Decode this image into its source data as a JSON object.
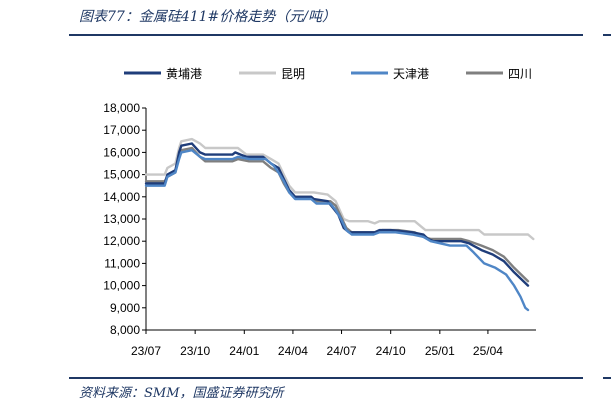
{
  "header": {
    "title": "图表77：金属硅411#价格走势（元/吨）"
  },
  "footer": {
    "source": "资料来源：SMM，国盛证券研究所"
  },
  "chart_data": {
    "type": "line",
    "title": "图表77：金属硅411#价格走势（元/吨）",
    "xlabel": "",
    "ylabel": "",
    "ylim": [
      8000,
      18000
    ],
    "yticks": [
      8000,
      9000,
      10000,
      11000,
      12000,
      13000,
      14000,
      15000,
      16000,
      17000,
      18000
    ],
    "ytick_labels": [
      "8,000",
      "9,000",
      "10,000",
      "11,000",
      "12,000",
      "13,000",
      "14,000",
      "15,000",
      "16,000",
      "17,000",
      "18,000"
    ],
    "xlim": [
      "2023-07-01",
      "2025-06-30"
    ],
    "xticks": [
      "2023-07-01",
      "2023-10-01",
      "2024-01-01",
      "2024-04-01",
      "2024-07-01",
      "2024-10-01",
      "2025-01-01",
      "2025-04-01"
    ],
    "xtick_labels": [
      "23/07",
      "23/10",
      "24/01",
      "24/04",
      "24/07",
      "24/10",
      "25/01",
      "25/04"
    ],
    "grid": false,
    "legend_position": "top",
    "series": [
      {
        "name": "黄埔港",
        "color": "#1f3d7a",
        "points": [
          [
            "2023-07-01",
            14600
          ],
          [
            "2023-08-05",
            14600
          ],
          [
            "2023-08-10",
            15000
          ],
          [
            "2023-08-25",
            15200
          ],
          [
            "2023-09-01",
            16000
          ],
          [
            "2023-09-05",
            16300
          ],
          [
            "2023-09-25",
            16400
          ],
          [
            "2023-10-10",
            16000
          ],
          [
            "2023-10-20",
            15900
          ],
          [
            "2023-12-10",
            15900
          ],
          [
            "2023-12-15",
            16000
          ],
          [
            "2023-12-25",
            15900
          ],
          [
            "2024-01-05",
            15800
          ],
          [
            "2024-02-05",
            15800
          ],
          [
            "2024-02-20",
            15500
          ],
          [
            "2024-03-05",
            15300
          ],
          [
            "2024-03-15",
            14800
          ],
          [
            "2024-03-25",
            14300
          ],
          [
            "2024-04-05",
            14000
          ],
          [
            "2024-05-05",
            14000
          ],
          [
            "2024-05-10",
            13900
          ],
          [
            "2024-06-05",
            13800
          ],
          [
            "2024-06-15",
            13500
          ],
          [
            "2024-06-25",
            13200
          ],
          [
            "2024-07-05",
            12600
          ],
          [
            "2024-07-15",
            12400
          ],
          [
            "2024-09-01",
            12400
          ],
          [
            "2024-09-10",
            12500
          ],
          [
            "2024-10-01",
            12500
          ],
          [
            "2024-11-10",
            12400
          ],
          [
            "2024-12-01",
            12300
          ],
          [
            "2024-12-10",
            12100
          ],
          [
            "2024-12-20",
            12000
          ],
          [
            "2025-02-10",
            12000
          ],
          [
            "2025-02-25",
            11900
          ],
          [
            "2025-03-20",
            11600
          ],
          [
            "2025-04-10",
            11400
          ],
          [
            "2025-05-01",
            11100
          ],
          [
            "2025-05-20",
            10600
          ],
          [
            "2025-06-15",
            10000
          ]
        ]
      },
      {
        "name": "昆明",
        "color": "#c8c8c8",
        "points": [
          [
            "2023-07-01",
            15000
          ],
          [
            "2023-08-05",
            15000
          ],
          [
            "2023-08-10",
            15300
          ],
          [
            "2023-08-25",
            15500
          ],
          [
            "2023-09-01",
            16200
          ],
          [
            "2023-09-05",
            16500
          ],
          [
            "2023-09-25",
            16600
          ],
          [
            "2023-10-10",
            16400
          ],
          [
            "2023-10-20",
            16200
          ],
          [
            "2023-12-20",
            16200
          ],
          [
            "2024-01-05",
            15900
          ],
          [
            "2024-02-05",
            15900
          ],
          [
            "2024-02-20",
            15700
          ],
          [
            "2024-03-05",
            15500
          ],
          [
            "2024-03-15",
            15000
          ],
          [
            "2024-03-25",
            14500
          ],
          [
            "2024-04-05",
            14200
          ],
          [
            "2024-05-10",
            14200
          ],
          [
            "2024-06-05",
            14100
          ],
          [
            "2024-06-20",
            13800
          ],
          [
            "2024-07-05",
            13000
          ],
          [
            "2024-07-15",
            12900
          ],
          [
            "2024-08-20",
            12900
          ],
          [
            "2024-09-01",
            12800
          ],
          [
            "2024-09-10",
            12900
          ],
          [
            "2024-11-15",
            12900
          ],
          [
            "2024-11-25",
            12700
          ],
          [
            "2024-12-05",
            12500
          ],
          [
            "2025-01-10",
            12500
          ],
          [
            "2025-03-15",
            12500
          ],
          [
            "2025-03-25",
            12300
          ],
          [
            "2025-06-15",
            12300
          ],
          [
            "2025-06-25",
            12100
          ]
        ]
      },
      {
        "name": "天津港",
        "color": "#4f86c6",
        "points": [
          [
            "2023-07-01",
            14500
          ],
          [
            "2023-08-05",
            14500
          ],
          [
            "2023-08-10",
            14900
          ],
          [
            "2023-08-25",
            15100
          ],
          [
            "2023-09-01",
            15700
          ],
          [
            "2023-09-05",
            16000
          ],
          [
            "2023-09-25",
            16100
          ],
          [
            "2023-10-10",
            15800
          ],
          [
            "2023-10-20",
            15700
          ],
          [
            "2023-12-10",
            15700
          ],
          [
            "2023-12-20",
            15800
          ],
          [
            "2024-01-10",
            15700
          ],
          [
            "2024-02-10",
            15700
          ],
          [
            "2024-02-25",
            15400
          ],
          [
            "2024-03-05",
            15100
          ],
          [
            "2024-03-15",
            14700
          ],
          [
            "2024-03-25",
            14200
          ],
          [
            "2024-04-05",
            13900
          ],
          [
            "2024-05-05",
            13900
          ],
          [
            "2024-05-15",
            13700
          ],
          [
            "2024-06-10",
            13700
          ],
          [
            "2024-06-20",
            13400
          ],
          [
            "2024-06-30",
            13000
          ],
          [
            "2024-07-10",
            12500
          ],
          [
            "2024-07-20",
            12300
          ],
          [
            "2024-08-30",
            12300
          ],
          [
            "2024-09-10",
            12400
          ],
          [
            "2024-10-10",
            12400
          ],
          [
            "2024-11-10",
            12300
          ],
          [
            "2024-12-01",
            12200
          ],
          [
            "2024-12-15",
            12000
          ],
          [
            "2025-01-20",
            11800
          ],
          [
            "2025-02-20",
            11800
          ],
          [
            "2025-03-05",
            11500
          ],
          [
            "2025-03-25",
            11000
          ],
          [
            "2025-04-15",
            10800
          ],
          [
            "2025-05-05",
            10500
          ],
          [
            "2025-05-20",
            10000
          ],
          [
            "2025-06-01",
            9500
          ],
          [
            "2025-06-10",
            9000
          ],
          [
            "2025-06-15",
            8900
          ]
        ]
      },
      {
        "name": "四川",
        "color": "#7f7f7f",
        "points": [
          [
            "2023-07-01",
            14700
          ],
          [
            "2023-08-05",
            14700
          ],
          [
            "2023-08-10",
            14900
          ],
          [
            "2023-08-25",
            15100
          ],
          [
            "2023-09-01",
            15900
          ],
          [
            "2023-09-05",
            16100
          ],
          [
            "2023-09-25",
            16200
          ],
          [
            "2023-10-10",
            15800
          ],
          [
            "2023-10-20",
            15600
          ],
          [
            "2023-12-10",
            15600
          ],
          [
            "2023-12-20",
            15700
          ],
          [
            "2024-01-10",
            15600
          ],
          [
            "2024-02-05",
            15600
          ],
          [
            "2024-02-20",
            15300
          ],
          [
            "2024-03-05",
            15100
          ],
          [
            "2024-03-15",
            14600
          ],
          [
            "2024-03-25",
            14200
          ],
          [
            "2024-04-05",
            14000
          ],
          [
            "2024-05-05",
            14000
          ],
          [
            "2024-05-15",
            13800
          ],
          [
            "2024-06-10",
            13800
          ],
          [
            "2024-06-20",
            13600
          ],
          [
            "2024-06-30",
            13100
          ],
          [
            "2024-07-10",
            12600
          ],
          [
            "2024-07-20",
            12400
          ],
          [
            "2024-09-01",
            12400
          ],
          [
            "2024-09-15",
            12500
          ],
          [
            "2024-10-15",
            12500
          ],
          [
            "2024-11-15",
            12400
          ],
          [
            "2024-12-01",
            12200
          ],
          [
            "2024-12-15",
            12100
          ],
          [
            "2025-02-10",
            12100
          ],
          [
            "2025-02-25",
            12000
          ],
          [
            "2025-03-20",
            11800
          ],
          [
            "2025-04-10",
            11600
          ],
          [
            "2025-05-01",
            11300
          ],
          [
            "2025-05-20",
            10800
          ],
          [
            "2025-06-15",
            10200
          ]
        ]
      }
    ]
  }
}
